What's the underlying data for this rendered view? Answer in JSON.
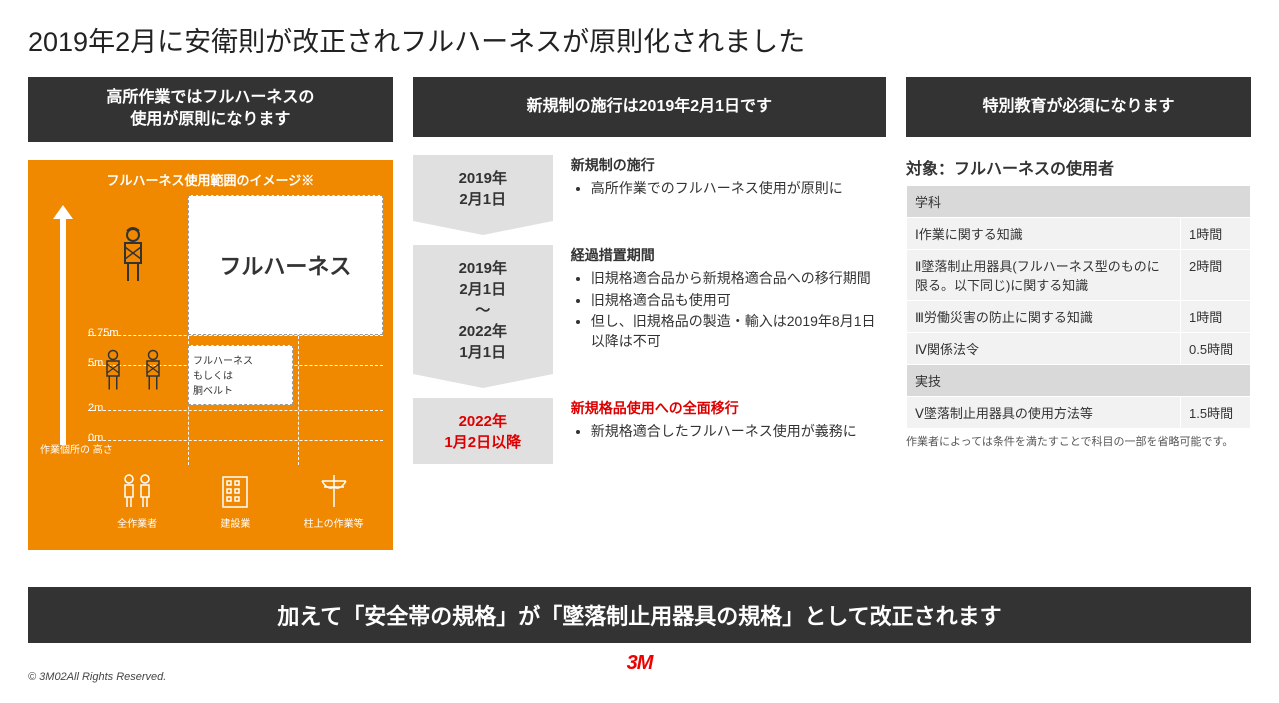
{
  "title": "2019年2月に安衛則が改正されフルハーネスが原則化されました",
  "col1": {
    "header": "高所作業ではフルハーネスの\n使用が原則になります",
    "diagram": {
      "title": "フルハーネス使用範囲のイメージ※",
      "big_label": "フルハーネス",
      "small_label": "フルハーネス\nもしくは\n胴ベルト",
      "y": [
        "6.75m",
        "5m",
        "2m",
        "0m"
      ],
      "ylabel": "作業個所の\n高さ",
      "icons": [
        "全作業者",
        "建設業",
        "柱上の作業等"
      ]
    }
  },
  "col2": {
    "header": "新規制の施行は2019年2月1日です",
    "rows": [
      {
        "date": "2019年\n2月1日",
        "title": "新規制の施行",
        "bullets": [
          "高所作業でのフルハーネス使用が原則に"
        ],
        "red": false
      },
      {
        "date": "2019年\n2月1日\n〜\n2022年\n1月1日",
        "title": "経過措置期間",
        "bullets": [
          "旧規格適合品から新規格適合品への移行期間",
          "旧規格適合品も使用可",
          "但し、旧規格品の製造・輸入は2019年8月1日以降は不可"
        ],
        "red": false
      },
      {
        "date": "2022年\n1月2日以降",
        "title": "新規格品使用への全面移行",
        "bullets": [
          "新規格適合したフルハーネス使用が義務に"
        ],
        "red": true
      }
    ]
  },
  "col3": {
    "header": "特別教育が必須になります",
    "tbl_title": "対象：フルハーネスの使用者",
    "sections": [
      {
        "name": "学科",
        "rows": [
          {
            "t": "Ⅰ作業に関する知識",
            "d": "1時間"
          },
          {
            "t": "Ⅱ墜落制止用器具(フルハーネス型のものに限る。以下同じ)に関する知識",
            "d": "2時間"
          },
          {
            "t": "Ⅲ労働災害の防止に関する知識",
            "d": "1時間"
          },
          {
            "t": "Ⅳ関係法令",
            "d": "0.5時間"
          }
        ]
      },
      {
        "name": "実技",
        "rows": [
          {
            "t": "Ⅴ墜落制止用器具の使用方法等",
            "d": "1.5時間"
          }
        ]
      }
    ],
    "note": "作業者によっては条件を満たすことで科目の一部を省略可能です。"
  },
  "bottom": "加えて「安全帯の規格」が「墜落制止用器具の規格」として改正されます",
  "logo": "3M",
  "copy": "© 3M02All Rights Reserved."
}
